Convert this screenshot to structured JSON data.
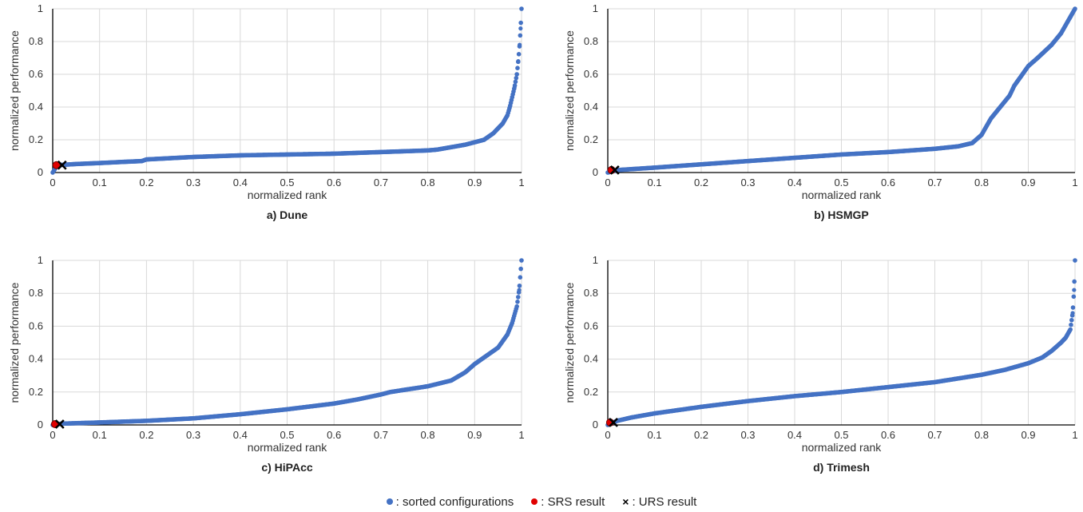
{
  "chart_data": [
    {
      "type": "scatter",
      "title": "a) Dune",
      "xlabel": "normalized rank",
      "ylabel": "normalized performance",
      "xlim": [
        0,
        1
      ],
      "ylim": [
        0,
        1
      ],
      "xticks": [
        "0",
        "0.1",
        "0.2",
        "0.3",
        "0.4",
        "0.5",
        "0.6",
        "0.7",
        "0.8",
        "0.9",
        "1"
      ],
      "yticks": [
        "0",
        "0.2",
        "0.4",
        "0.6",
        "0.8",
        "1"
      ],
      "grid": true,
      "series": [
        {
          "name": "sorted configurations",
          "color": "#4472c4",
          "x": [
            0,
            0.01,
            0.05,
            0.1,
            0.15,
            0.19,
            0.2,
            0.3,
            0.4,
            0.5,
            0.6,
            0.7,
            0.8,
            0.82,
            0.85,
            0.88,
            0.9,
            0.92,
            0.94,
            0.95,
            0.96,
            0.97,
            0.975,
            0.98,
            0.985,
            0.99,
            0.993,
            0.996,
            0.998,
            1.0
          ],
          "y": [
            0.0,
            0.045,
            0.052,
            0.058,
            0.065,
            0.07,
            0.08,
            0.095,
            0.105,
            0.11,
            0.115,
            0.125,
            0.135,
            0.14,
            0.155,
            0.17,
            0.185,
            0.2,
            0.24,
            0.27,
            0.3,
            0.35,
            0.4,
            0.46,
            0.52,
            0.6,
            0.68,
            0.78,
            0.88,
            1.0
          ]
        },
        {
          "name": "SRS result",
          "color": "#e00000",
          "x": [
            0.008
          ],
          "y": [
            0.045
          ]
        },
        {
          "name": "URS result",
          "color": "#000000",
          "x": [
            0.02
          ],
          "y": [
            0.045
          ]
        }
      ]
    },
    {
      "type": "scatter",
      "title": "b) HSMGP",
      "xlabel": "normalized rank",
      "ylabel": "normalized performance",
      "xlim": [
        0,
        1
      ],
      "ylim": [
        0,
        1
      ],
      "xticks": [
        "0",
        "0.1",
        "0.2",
        "0.3",
        "0.4",
        "0.5",
        "0.6",
        "0.7",
        "0.8",
        "0.9",
        "1"
      ],
      "yticks": [
        "0",
        "0.2",
        "0.4",
        "0.6",
        "0.8",
        "1"
      ],
      "grid": true,
      "series": [
        {
          "name": "sorted configurations",
          "color": "#4472c4",
          "x": [
            0,
            0.02,
            0.1,
            0.2,
            0.3,
            0.4,
            0.5,
            0.6,
            0.7,
            0.75,
            0.78,
            0.8,
            0.82,
            0.84,
            0.86,
            0.87,
            0.88,
            0.9,
            0.92,
            0.95,
            0.97,
            0.99,
            1.0
          ],
          "y": [
            0.0,
            0.015,
            0.03,
            0.05,
            0.07,
            0.09,
            0.11,
            0.125,
            0.145,
            0.16,
            0.18,
            0.23,
            0.33,
            0.4,
            0.47,
            0.53,
            0.57,
            0.65,
            0.7,
            0.78,
            0.85,
            0.95,
            1.0
          ]
        },
        {
          "name": "SRS result",
          "color": "#e00000",
          "x": [
            0.008
          ],
          "y": [
            0.015
          ]
        },
        {
          "name": "URS result",
          "color": "#000000",
          "x": [
            0.015
          ],
          "y": [
            0.015
          ]
        }
      ]
    },
    {
      "type": "scatter",
      "title": "c) HiPAcc",
      "xlabel": "normalized rank",
      "ylabel": "normalized performance",
      "xlim": [
        0,
        1
      ],
      "ylim": [
        0,
        1
      ],
      "xticks": [
        "0",
        "0.1",
        "0.2",
        "0.3",
        "0.4",
        "0.5",
        "0.6",
        "0.7",
        "0.8",
        "0.9",
        "1"
      ],
      "yticks": [
        "0",
        "0.2",
        "0.4",
        "0.6",
        "0.8",
        "1"
      ],
      "grid": true,
      "series": [
        {
          "name": "sorted configurations",
          "color": "#4472c4",
          "x": [
            0,
            0.02,
            0.1,
            0.2,
            0.3,
            0.4,
            0.5,
            0.6,
            0.65,
            0.7,
            0.72,
            0.8,
            0.85,
            0.88,
            0.9,
            0.92,
            0.95,
            0.97,
            0.98,
            0.99,
            0.995,
            1.0
          ],
          "y": [
            0.0,
            0.008,
            0.015,
            0.025,
            0.04,
            0.065,
            0.095,
            0.13,
            0.155,
            0.185,
            0.2,
            0.235,
            0.27,
            0.32,
            0.37,
            0.41,
            0.47,
            0.55,
            0.62,
            0.72,
            0.82,
            1.0
          ]
        },
        {
          "name": "SRS result",
          "color": "#e00000",
          "x": [
            0.005
          ],
          "y": [
            0.005
          ]
        },
        {
          "name": "URS result",
          "color": "#000000",
          "x": [
            0.015
          ],
          "y": [
            0.005
          ]
        }
      ]
    },
    {
      "type": "scatter",
      "title": "d) Trimesh",
      "xlabel": "normalized rank",
      "ylabel": "normalized performance",
      "xlim": [
        0,
        1
      ],
      "ylim": [
        0,
        1
      ],
      "xticks": [
        "0",
        "0.1",
        "0.2",
        "0.3",
        "0.4",
        "0.5",
        "0.6",
        "0.7",
        "0.8",
        "0.9",
        "1"
      ],
      "yticks": [
        "0",
        "0.2",
        "0.4",
        "0.6",
        "0.8",
        "1"
      ],
      "grid": true,
      "series": [
        {
          "name": "sorted configurations",
          "color": "#4472c4",
          "x": [
            0,
            0.02,
            0.05,
            0.1,
            0.2,
            0.3,
            0.4,
            0.5,
            0.6,
            0.7,
            0.8,
            0.85,
            0.9,
            0.93,
            0.95,
            0.97,
            0.98,
            0.99,
            0.995,
            0.998,
            1.0
          ],
          "y": [
            0.0,
            0.025,
            0.045,
            0.07,
            0.11,
            0.145,
            0.175,
            0.2,
            0.23,
            0.26,
            0.305,
            0.335,
            0.375,
            0.41,
            0.45,
            0.5,
            0.53,
            0.58,
            0.68,
            0.82,
            1.0
          ]
        },
        {
          "name": "SRS result",
          "color": "#e00000",
          "x": [
            0.005
          ],
          "y": [
            0.015
          ]
        },
        {
          "name": "URS result",
          "color": "#000000",
          "x": [
            0.012
          ],
          "y": [
            0.015
          ]
        }
      ]
    }
  ],
  "legend": {
    "placement": "bottom-center",
    "items": [
      {
        "label": ": sorted configurations",
        "color": "#4472c4",
        "marker": "dot"
      },
      {
        "label": ": SRS result",
        "color": "#e00000",
        "marker": "dot"
      },
      {
        "label": ": URS result",
        "color": "#000000",
        "marker": "x"
      }
    ],
    "x_glyph": "×"
  }
}
